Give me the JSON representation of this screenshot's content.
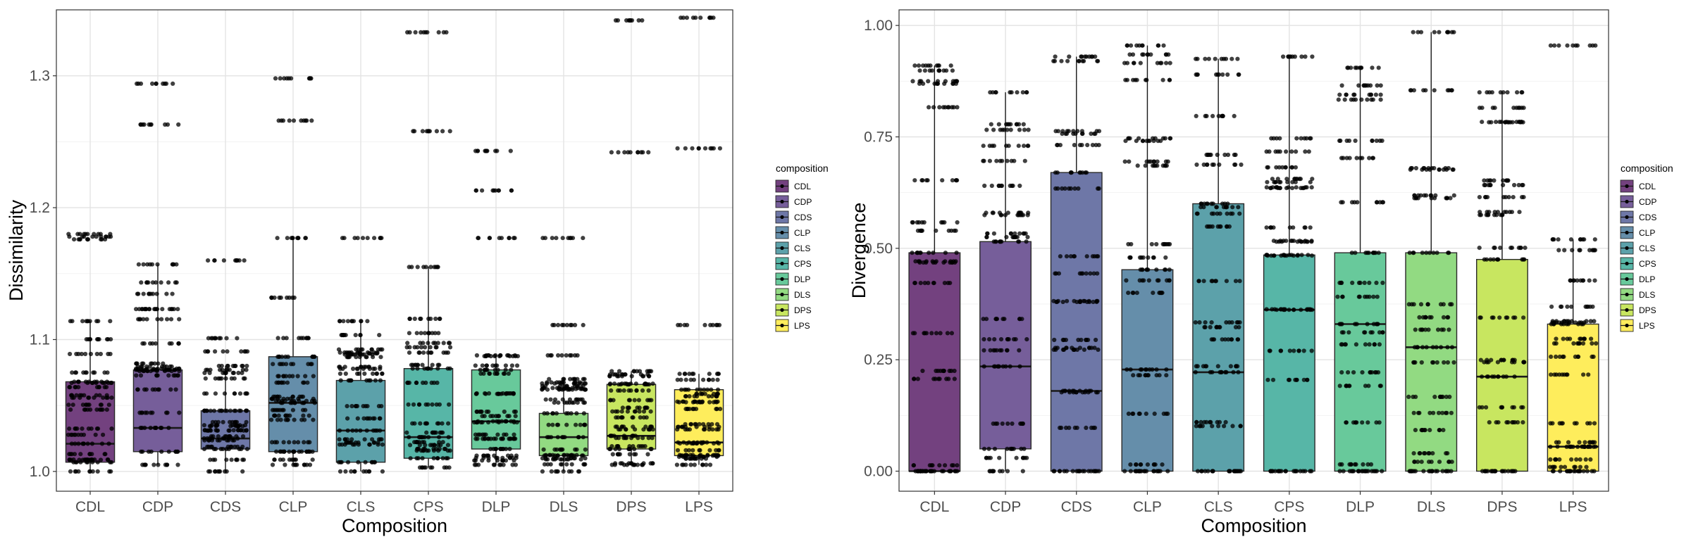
{
  "chart_data": [
    {
      "type": "box",
      "xlabel": "Composition",
      "ylabel": "Dissimilarity",
      "ylim": [
        0.985,
        1.35
      ],
      "yticks": [
        1.0,
        1.1,
        1.2,
        1.3
      ],
      "ytick_labels": [
        "1.0",
        "1.1",
        "1.2",
        "1.3"
      ],
      "grid": true,
      "categories": [
        "CDL",
        "CDP",
        "CDS",
        "CLP",
        "CLS",
        "CPS",
        "DLP",
        "DLS",
        "DPS",
        "LPS"
      ],
      "boxes": [
        {
          "q1": 1.007,
          "median": 1.021,
          "q3": 1.068,
          "whisker_low": 1.0,
          "whisker_high": 1.114,
          "outliers": [
            1.176,
            1.178,
            1.18
          ]
        },
        {
          "q1": 1.015,
          "median": 1.033,
          "q3": 1.077,
          "whisker_low": 1.005,
          "whisker_high": 1.157,
          "outliers": [
            1.263,
            1.294
          ]
        },
        {
          "q1": 1.017,
          "median": 1.025,
          "q3": 1.046,
          "whisker_low": 1.0,
          "whisker_high": 1.08,
          "outliers": [
            1.091,
            1.101,
            1.16
          ]
        },
        {
          "q1": 1.015,
          "median": 1.052,
          "q3": 1.087,
          "whisker_low": 1.005,
          "whisker_high": 1.177,
          "outliers": [
            1.266,
            1.298
          ]
        },
        {
          "q1": 1.007,
          "median": 1.031,
          "q3": 1.069,
          "whisker_low": 1.0,
          "whisker_high": 1.114,
          "outliers": [
            1.177
          ]
        },
        {
          "q1": 1.01,
          "median": 1.026,
          "q3": 1.078,
          "whisker_low": 1.003,
          "whisker_high": 1.155,
          "outliers": [
            1.258,
            1.333
          ]
        },
        {
          "q1": 1.017,
          "median": 1.038,
          "q3": 1.077,
          "whisker_low": 1.005,
          "whisker_high": 1.088,
          "outliers": [
            1.177,
            1.213,
            1.243
          ]
        },
        {
          "q1": 1.012,
          "median": 1.026,
          "q3": 1.044,
          "whisker_low": 1.0,
          "whisker_high": 1.07,
          "outliers": [
            1.088,
            1.111,
            1.177
          ]
        },
        {
          "q1": 1.017,
          "median": 1.027,
          "q3": 1.066,
          "whisker_low": 1.005,
          "whisker_high": 1.076,
          "outliers": [
            1.242,
            1.342
          ]
        },
        {
          "q1": 1.012,
          "median": 1.022,
          "q3": 1.062,
          "whisker_low": 1.005,
          "whisker_high": 1.074,
          "outliers": [
            1.111,
            1.245,
            1.344
          ]
        }
      ],
      "legend": {
        "title": "composition",
        "placement": "right",
        "entries": [
          "CDL",
          "CDP",
          "CDS",
          "CLP",
          "CLS",
          "CPS",
          "DLP",
          "DLS",
          "DPS",
          "LPS"
        ]
      }
    },
    {
      "type": "box",
      "xlabel": "Composition",
      "ylabel": "Divergence",
      "ylim": [
        -0.045,
        1.035
      ],
      "yticks": [
        0.0,
        0.25,
        0.5,
        0.75,
        1.0
      ],
      "ytick_labels": [
        "0.00",
        "0.25",
        "0.50",
        "0.75",
        "1.00"
      ],
      "grid": true,
      "categories": [
        "CDL",
        "CDP",
        "CDS",
        "CLP",
        "CLS",
        "CPS",
        "DLP",
        "DLS",
        "DPS",
        "LPS"
      ],
      "boxes": [
        {
          "q1": 0.0,
          "median": 0.0,
          "q3": 0.49,
          "whisker_low": 0.0,
          "whisker_high": 0.91,
          "outliers": []
        },
        {
          "q1": 0.05,
          "median": 0.235,
          "q3": 0.515,
          "whisker_low": 0.0,
          "whisker_high": 0.85,
          "outliers": []
        },
        {
          "q1": 0.0,
          "median": 0.18,
          "q3": 0.67,
          "whisker_low": 0.0,
          "whisker_high": 0.93,
          "outliers": []
        },
        {
          "q1": 0.0,
          "median": 0.228,
          "q3": 0.452,
          "whisker_low": 0.0,
          "whisker_high": 0.955,
          "outliers": []
        },
        {
          "q1": 0.0,
          "median": 0.222,
          "q3": 0.6,
          "whisker_low": 0.0,
          "whisker_high": 0.925,
          "outliers": []
        },
        {
          "q1": 0.0,
          "median": 0.362,
          "q3": 0.485,
          "whisker_low": 0.0,
          "whisker_high": 0.93,
          "outliers": []
        },
        {
          "q1": 0.0,
          "median": 0.33,
          "q3": 0.49,
          "whisker_low": 0.0,
          "whisker_high": 0.905,
          "outliers": []
        },
        {
          "q1": 0.0,
          "median": 0.278,
          "q3": 0.49,
          "whisker_low": 0.0,
          "whisker_high": 0.985,
          "outliers": []
        },
        {
          "q1": 0.0,
          "median": 0.212,
          "q3": 0.475,
          "whisker_low": 0.0,
          "whisker_high": 0.85,
          "outliers": []
        },
        {
          "q1": 0.0,
          "median": 0.055,
          "q3": 0.33,
          "whisker_low": 0.0,
          "whisker_high": 0.52,
          "outliers": [
            0.955
          ]
        }
      ],
      "legend": {
        "title": "composition",
        "placement": "right",
        "entries": [
          "CDL",
          "CDP",
          "CDS",
          "CLP",
          "CLS",
          "CPS",
          "DLP",
          "DLS",
          "DPS",
          "LPS"
        ]
      }
    }
  ],
  "colors": [
    "#440154",
    "#482878",
    "#3e4a89",
    "#31688e",
    "#26828e",
    "#1f9e89",
    "#35b779",
    "#6ece58",
    "#b5de2b",
    "#fde725"
  ]
}
